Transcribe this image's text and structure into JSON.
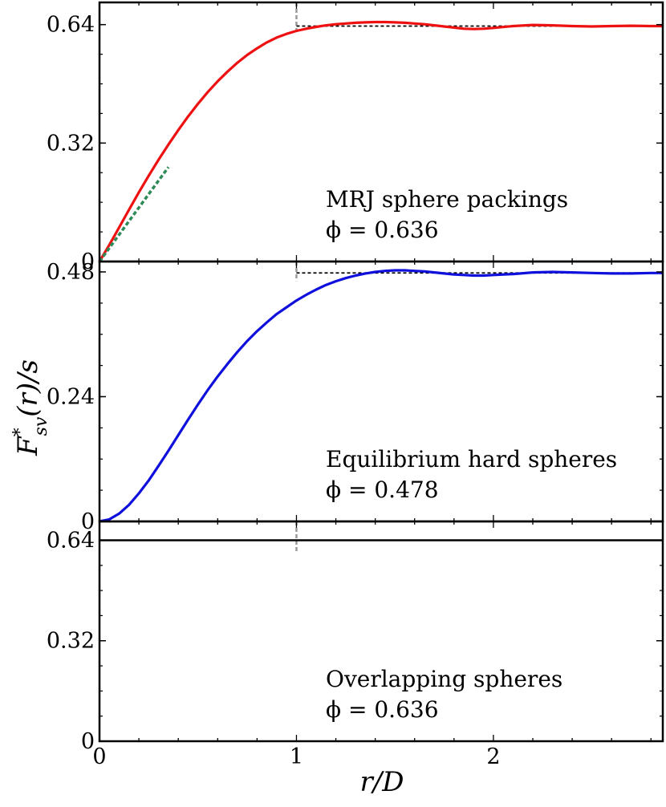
{
  "chart_data": [
    {
      "type": "line",
      "panel": "top",
      "annotation_line1": "MRJ sphere packings",
      "annotation_line2": "ϕ = 0.636",
      "ylim": [
        0,
        0.7
      ],
      "yticks": [
        {
          "value": 0,
          "label": "0"
        },
        {
          "value": 0.32,
          "label": "0.32"
        },
        {
          "value": 0.64,
          "label": "0.64"
        }
      ],
      "asymptote": 0.636,
      "series": [
        {
          "color": "#ee1111",
          "x": [
            0,
            0.05,
            0.1,
            0.15,
            0.2,
            0.25,
            0.3,
            0.35,
            0.4,
            0.45,
            0.5,
            0.55,
            0.6,
            0.65,
            0.7,
            0.75,
            0.8,
            0.85,
            0.9,
            0.95,
            1.0,
            1.05,
            1.1,
            1.15,
            1.2,
            1.25,
            1.3,
            1.35,
            1.4,
            1.45,
            1.5,
            1.55,
            1.6,
            1.65,
            1.7,
            1.75,
            1.8,
            1.85,
            1.9,
            1.95,
            2.0,
            2.1,
            2.2,
            2.3,
            2.4,
            2.5,
            2.6,
            2.7,
            2.8,
            2.86
          ],
          "y": [
            0,
            0.045,
            0.092,
            0.14,
            0.187,
            0.232,
            0.275,
            0.316,
            0.355,
            0.392,
            0.426,
            0.458,
            0.487,
            0.513,
            0.537,
            0.558,
            0.576,
            0.592,
            0.605,
            0.615,
            0.623,
            0.629,
            0.634,
            0.638,
            0.641,
            0.643,
            0.645,
            0.646,
            0.647,
            0.647,
            0.646,
            0.645,
            0.643,
            0.641,
            0.638,
            0.635,
            0.632,
            0.629,
            0.628,
            0.629,
            0.631,
            0.636,
            0.639,
            0.638,
            0.636,
            0.635,
            0.636,
            0.637,
            0.636,
            0.636
          ]
        }
      ],
      "slope_line": {
        "color": "#2e8b57",
        "x": [
          0,
          0.35
        ],
        "y": [
          0,
          0.255
        ]
      }
    },
    {
      "type": "line",
      "panel": "middle",
      "annotation_line1": "Equilibrium hard spheres",
      "annotation_line2": "ϕ = 0.478",
      "ylim": [
        0,
        0.5
      ],
      "yticks": [
        {
          "value": 0,
          "label": "0"
        },
        {
          "value": 0.24,
          "label": "0.24"
        },
        {
          "value": 0.48,
          "label": "0.48"
        }
      ],
      "asymptote": 0.478,
      "series": [
        {
          "color": "#1010dd",
          "x": [
            0,
            0.05,
            0.1,
            0.15,
            0.2,
            0.25,
            0.3,
            0.35,
            0.4,
            0.45,
            0.5,
            0.55,
            0.6,
            0.65,
            0.7,
            0.75,
            0.8,
            0.85,
            0.9,
            0.95,
            1.0,
            1.05,
            1.1,
            1.15,
            1.2,
            1.25,
            1.3,
            1.35,
            1.4,
            1.45,
            1.5,
            1.55,
            1.6,
            1.65,
            1.7,
            1.75,
            1.8,
            1.85,
            1.9,
            1.95,
            2.0,
            2.1,
            2.2,
            2.3,
            2.4,
            2.5,
            2.6,
            2.7,
            2.8,
            2.86
          ],
          "y": [
            0,
            0.004,
            0.015,
            0.032,
            0.054,
            0.079,
            0.107,
            0.136,
            0.166,
            0.196,
            0.225,
            0.253,
            0.279,
            0.303,
            0.326,
            0.347,
            0.366,
            0.383,
            0.399,
            0.412,
            0.425,
            0.436,
            0.446,
            0.455,
            0.462,
            0.468,
            0.473,
            0.477,
            0.48,
            0.482,
            0.483,
            0.483,
            0.482,
            0.481,
            0.479,
            0.477,
            0.475,
            0.474,
            0.473,
            0.473,
            0.474,
            0.476,
            0.479,
            0.48,
            0.479,
            0.478,
            0.477,
            0.477,
            0.478,
            0.478
          ]
        }
      ]
    },
    {
      "type": "line",
      "panel": "bottom",
      "annotation_line1": "Overlapping spheres",
      "annotation_line2": "ϕ = 0.636",
      "ylim": [
        0,
        0.7
      ],
      "yticks": [
        {
          "value": 0,
          "label": "0"
        },
        {
          "value": 0.32,
          "label": "0.32"
        },
        {
          "value": 0.64,
          "label": "0.64"
        }
      ],
      "series": []
    }
  ],
  "x_axis": {
    "xlim": [
      0,
      2.86
    ],
    "ticks": [
      {
        "value": 0,
        "label": "0"
      },
      {
        "value": 1,
        "label": "1"
      },
      {
        "value": 2,
        "label": "2"
      }
    ],
    "label": "r/D"
  },
  "y_axis_label": "F*sv(r)/s",
  "y_axis_label_parts": {
    "base": "F",
    "sup": "*",
    "sub": "sv",
    "rest": "(r)/s"
  },
  "reference_x": 1
}
